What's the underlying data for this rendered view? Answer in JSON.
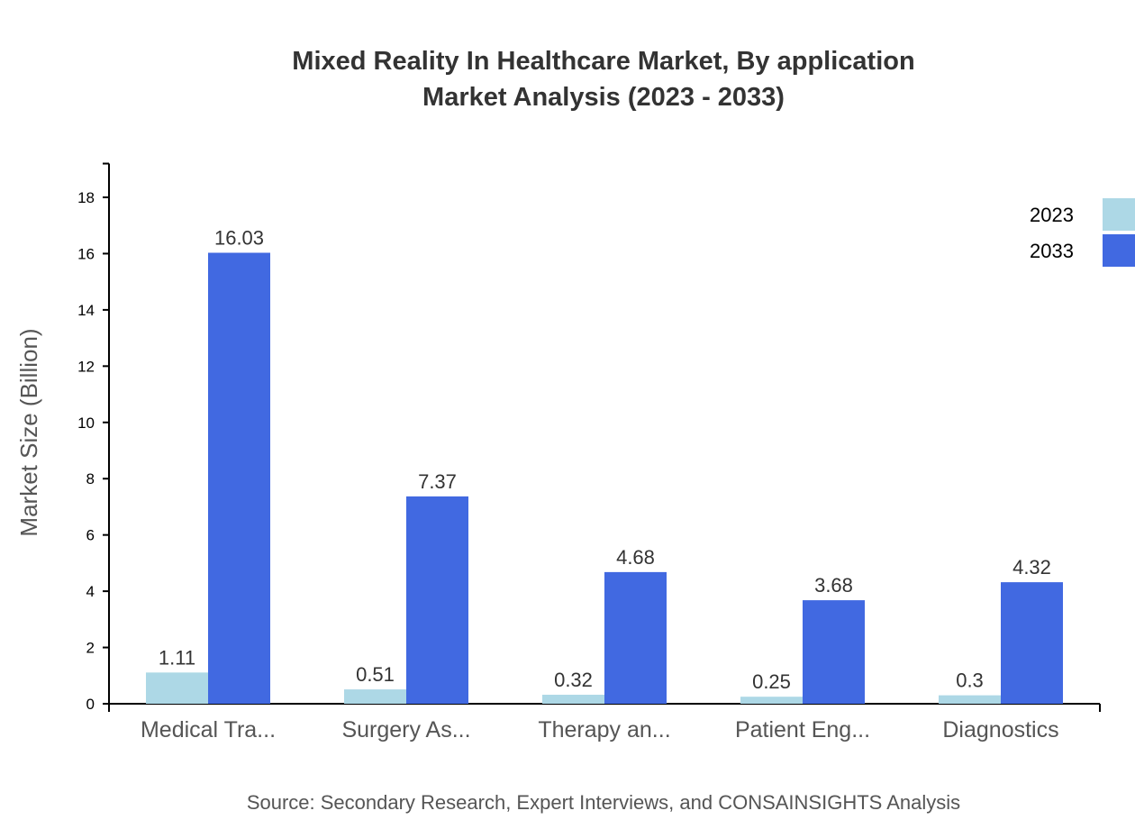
{
  "chart_data": {
    "type": "bar",
    "title": "Mixed Reality In Healthcare Market, By application",
    "subtitle": "Market Analysis (2023 - 2033)",
    "xlabel": "",
    "ylabel": "Market Size (Billion)",
    "ylim": [
      0,
      19.2
    ],
    "yticks": [
      0,
      2,
      4,
      6,
      8,
      10,
      12,
      14,
      16,
      18
    ],
    "categories": [
      "Medical Tra...",
      "Surgery As...",
      "Therapy an...",
      "Patient Eng...",
      "Diagnostics"
    ],
    "series": [
      {
        "name": "2023",
        "color": "#add8e6",
        "values": [
          1.11,
          0.51,
          0.32,
          0.25,
          0.3
        ]
      },
      {
        "name": "2033",
        "color": "#4169e1",
        "values": [
          16.03,
          7.37,
          4.68,
          3.68,
          4.32
        ]
      }
    ],
    "legend": "top-right",
    "grid": false
  },
  "source": "Source: Secondary Research, Expert Interviews, and CONSAINSIGHTS Analysis"
}
